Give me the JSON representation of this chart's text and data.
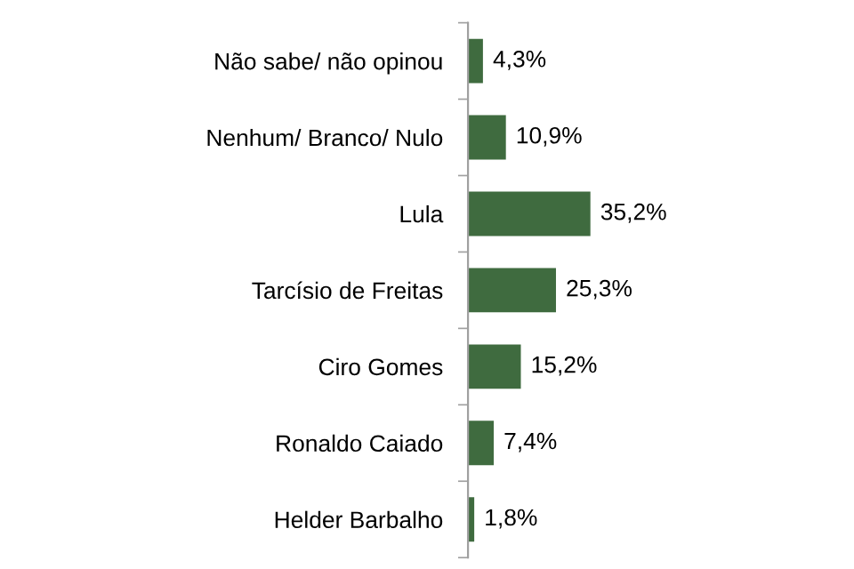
{
  "chart_data": {
    "type": "bar",
    "orientation": "horizontal",
    "categories": [
      "Não sabe/ não opinou",
      "Nenhum/ Branco/ Nulo",
      "Lula",
      "Tarcísio de Freitas",
      "Ciro Gomes",
      "Ronaldo Caiado",
      "Helder Barbalho"
    ],
    "values": [
      4.3,
      10.9,
      35.2,
      25.3,
      15.2,
      7.4,
      1.8
    ],
    "value_labels": [
      "4,3%",
      "10,9%",
      "35,2%",
      "25,3%",
      "15,2%",
      "7,4%",
      "1,8%"
    ],
    "color": "#3f6b3f",
    "grid": false,
    "legend": false
  }
}
